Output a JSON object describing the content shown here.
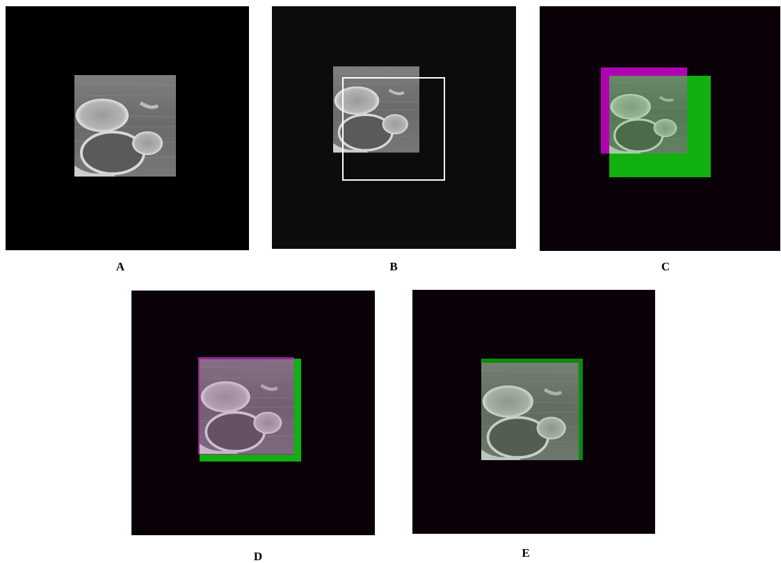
{
  "figure": {
    "panels": [
      {
        "label": "A"
      },
      {
        "label": "B"
      },
      {
        "label": "C"
      },
      {
        "label": "D"
      },
      {
        "label": "E"
      }
    ]
  }
}
